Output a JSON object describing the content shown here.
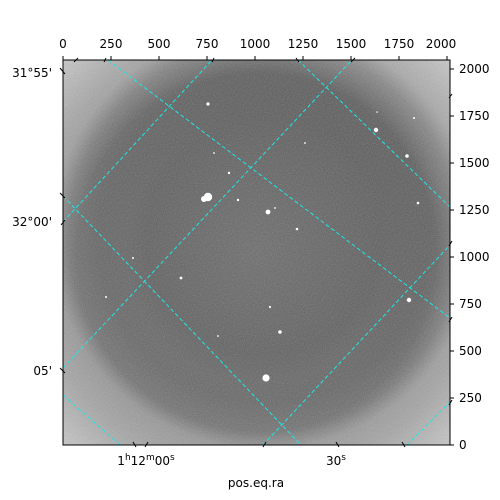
{
  "figure": {
    "xlabel": "pos.eq.ra",
    "top_ticks": [
      "0",
      "250",
      "500",
      "750",
      "1000",
      "1250",
      "1500",
      "1750",
      "2000"
    ],
    "right_ticks": [
      "0",
      "250",
      "500",
      "750",
      "1000",
      "1250",
      "1500",
      "1750",
      "2000"
    ],
    "left_ticks": [
      "31°55'",
      "32°00'",
      "05'"
    ],
    "bottom_ticks": [
      {
        "label": "1",
        "sup1": "h",
        "mid": "12",
        "sup2": "m",
        "tail": "00",
        "sup3": "s"
      },
      {
        "label": "30",
        "sup1": "s"
      }
    ],
    "grid_color": "#1ee6e6",
    "background_gray": "#6e6e6e"
  }
}
